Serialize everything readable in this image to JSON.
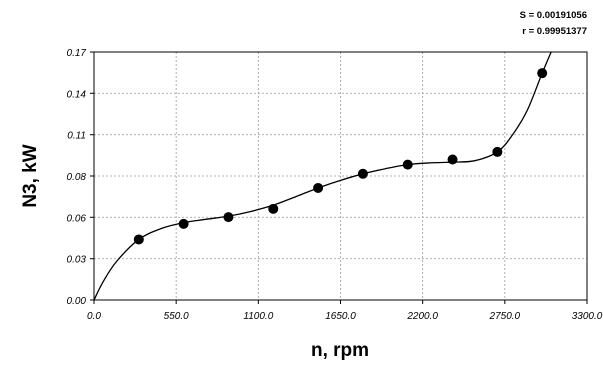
{
  "chart_data": {
    "type": "scatter",
    "title": "",
    "xlabel": "n, rpm",
    "ylabel": "N3, kW",
    "xlim": [
      0,
      3300
    ],
    "ylim": [
      0,
      0.17
    ],
    "x_ticks": [
      0,
      550,
      1100,
      1650,
      2200,
      2750,
      3300
    ],
    "x_tick_labels": [
      "0.0",
      "550.0",
      "1100.0",
      "1650.0",
      "2200.0",
      "2750.0",
      "3300.0"
    ],
    "y_ticks": [
      0,
      0.0283,
      0.0567,
      0.085,
      0.1133,
      0.1417,
      0.17
    ],
    "y_tick_labels": [
      "0.00",
      "0.03",
      "0.06",
      "0.08",
      "0.11",
      "0.14",
      "0.17"
    ],
    "grid": true,
    "points": {
      "x": [
        300,
        600,
        900,
        1200,
        1500,
        1800,
        2100,
        2400,
        2700,
        3000
      ],
      "y": [
        0.0415,
        0.0522,
        0.0568,
        0.0625,
        0.0768,
        0.0865,
        0.0928,
        0.0963,
        0.1015,
        0.1555
      ]
    },
    "fit_curve": {
      "x": [
        0,
        60,
        150,
        300,
        450,
        600,
        750,
        900,
        1050,
        1200,
        1350,
        1500,
        1650,
        1800,
        1950,
        2100,
        2250,
        2400,
        2550,
        2700,
        2800,
        2900,
        3000,
        3060
      ],
      "y": [
        0.0,
        0.0123,
        0.0263,
        0.0415,
        0.049,
        0.053,
        0.0553,
        0.0575,
        0.0607,
        0.065,
        0.0708,
        0.0768,
        0.082,
        0.0865,
        0.09,
        0.0928,
        0.094,
        0.0945,
        0.0955,
        0.1015,
        0.113,
        0.13,
        0.1555,
        0.17
      ]
    },
    "stats": {
      "s_label": "S = 0.00191056",
      "r_label": "r = 0.99951377"
    }
  }
}
